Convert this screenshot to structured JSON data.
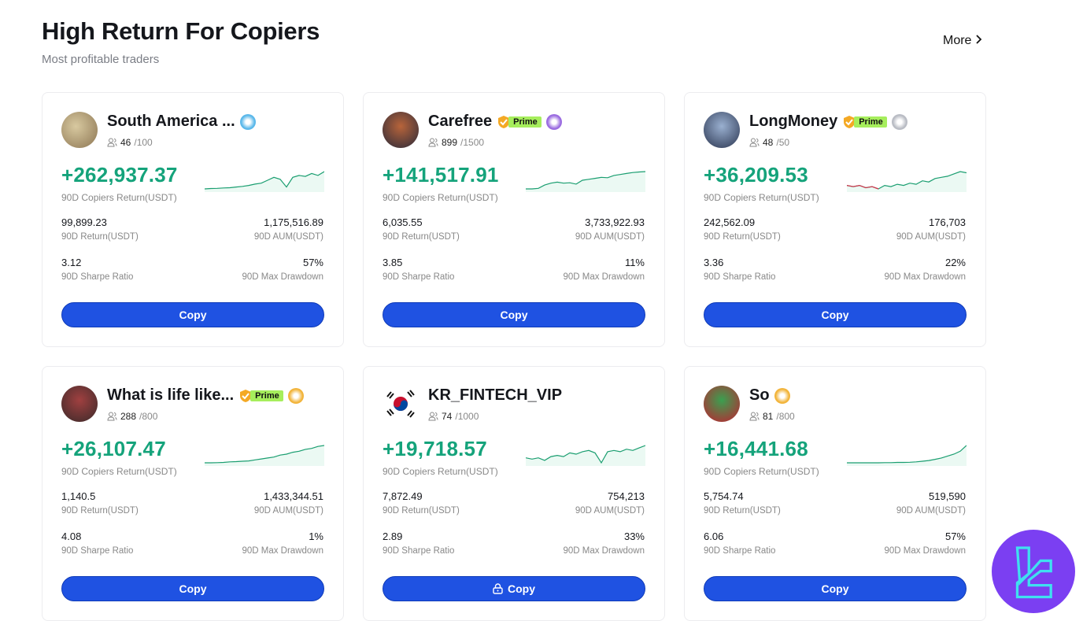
{
  "header": {
    "title": "High Return For Copiers",
    "subtitle": "Most profitable traders",
    "more_label": "More"
  },
  "colors": {
    "accent_green": "#15a37b",
    "button_blue": "#1f52e2",
    "prime_green": "#a6ee5c",
    "logo_purple": "#7b3ff2"
  },
  "traders": [
    {
      "name": "South America ...",
      "prime": false,
      "level": "diamond-blue",
      "copiers": "46",
      "max_copiers": "/100",
      "copiers_return": "+262,937.37",
      "copiers_return_label": "90D Copiers Return(USDT)",
      "return": "99,899.23",
      "return_label": "90D Return(USDT)",
      "aum": "1,175,516.89",
      "aum_label": "90D AUM(USDT)",
      "sharpe": "3.12",
      "sharpe_label": "90D Sharpe Ratio",
      "drawdown": "57%",
      "drawdown_label": "90D Max Drawdown",
      "copy_label": "Copy",
      "locked": false,
      "sparkline": [
        2,
        2.2,
        2.3,
        2.5,
        2.6,
        3,
        3.3,
        3.8,
        4.5,
        5,
        6.5,
        8,
        7,
        3,
        8,
        9,
        8.5,
        10,
        9,
        11
      ]
    },
    {
      "name": "Carefree",
      "prime": true,
      "prime_label": "Prime",
      "level": "purple",
      "copiers": "899",
      "max_copiers": "/1500",
      "copiers_return": "+141,517.91",
      "copiers_return_label": "90D Copiers Return(USDT)",
      "return": "6,035.55",
      "return_label": "90D Return(USDT)",
      "aum": "3,733,922.93",
      "aum_label": "90D AUM(USDT)",
      "sharpe": "3.85",
      "sharpe_label": "90D Sharpe Ratio",
      "drawdown": "11%",
      "drawdown_label": "90D Max Drawdown",
      "copy_label": "Copy",
      "locked": false,
      "sparkline": [
        1,
        1,
        1.3,
        3,
        4,
        4.5,
        4,
        4.2,
        3.5,
        5.5,
        6,
        6.5,
        7,
        6.8,
        8,
        8.5,
        9,
        9.5,
        9.8,
        10
      ]
    },
    {
      "name": "LongMoney",
      "prime": true,
      "prime_label": "Prime",
      "level": "silver",
      "copiers": "48",
      "max_copiers": "/50",
      "copiers_return": "+36,209.53",
      "copiers_return_label": "90D Copiers Return(USDT)",
      "return": "242,562.09",
      "return_label": "90D Return(USDT)",
      "aum": "176,703",
      "aum_label": "90D AUM(USDT)",
      "sharpe": "3.36",
      "sharpe_label": "90D Sharpe Ratio",
      "drawdown": "22%",
      "drawdown_label": "90D Max Drawdown",
      "copy_label": "Copy",
      "locked": false,
      "sparkline": [
        4,
        3.5,
        4,
        3,
        3.5,
        2.5,
        4,
        3.5,
        4.5,
        4,
        5,
        4.5,
        6,
        5.5,
        7,
        7.5,
        8,
        9,
        10,
        9.5
      ]
    },
    {
      "name": "What is life like...",
      "prime": true,
      "prime_label": "Prime",
      "level": "gold",
      "copiers": "288",
      "max_copiers": "/800",
      "copiers_return": "+26,107.47",
      "copiers_return_label": "90D Copiers Return(USDT)",
      "return": "1,140.5",
      "return_label": "90D Return(USDT)",
      "aum": "1,433,344.51",
      "aum_label": "90D AUM(USDT)",
      "sharpe": "4.08",
      "sharpe_label": "90D Sharpe Ratio",
      "drawdown": "1%",
      "drawdown_label": "90D Max Drawdown",
      "copy_label": "Copy",
      "locked": false,
      "sparkline": [
        1,
        1,
        1.1,
        1.2,
        1.5,
        1.6,
        1.8,
        2,
        2.5,
        3,
        3.5,
        4,
        5,
        5.5,
        6.5,
        7,
        8,
        8.5,
        9.5,
        10
      ]
    },
    {
      "name": "KR_FINTECH_VIP",
      "prime": false,
      "level": "none",
      "copiers": "74",
      "max_copiers": "/1000",
      "copiers_return": "+19,718.57",
      "copiers_return_label": "90D Copiers Return(USDT)",
      "return": "7,872.49",
      "return_label": "90D Return(USDT)",
      "aum": "754,213",
      "aum_label": "90D AUM(USDT)",
      "sharpe": "2.89",
      "sharpe_label": "90D Sharpe Ratio",
      "drawdown": "33%",
      "drawdown_label": "90D Max Drawdown",
      "copy_label": "Copy",
      "locked": true,
      "sparkline": [
        5,
        4.5,
        5,
        4,
        5.5,
        6,
        5.5,
        7,
        6.5,
        7.5,
        8,
        7,
        3,
        7.5,
        8,
        7.5,
        8.5,
        8,
        9,
        10
      ]
    },
    {
      "name": "So",
      "prime": false,
      "level": "gold",
      "copiers": "81",
      "max_copiers": "/800",
      "copiers_return": "+16,441.68",
      "copiers_return_label": "90D Copiers Return(USDT)",
      "return": "5,754.74",
      "return_label": "90D Return(USDT)",
      "aum": "519,590",
      "aum_label": "90D AUM(USDT)",
      "sharpe": "6.06",
      "sharpe_label": "90D Sharpe Ratio",
      "drawdown": "57%",
      "drawdown_label": "90D Max Drawdown",
      "copy_label": "Copy",
      "locked": false,
      "sparkline": [
        1,
        1,
        1,
        1,
        1,
        1,
        1.1,
        1.1,
        1.2,
        1.2,
        1.3,
        1.5,
        1.8,
        2.2,
        2.8,
        3.5,
        4.5,
        5.5,
        7,
        10
      ]
    }
  ]
}
